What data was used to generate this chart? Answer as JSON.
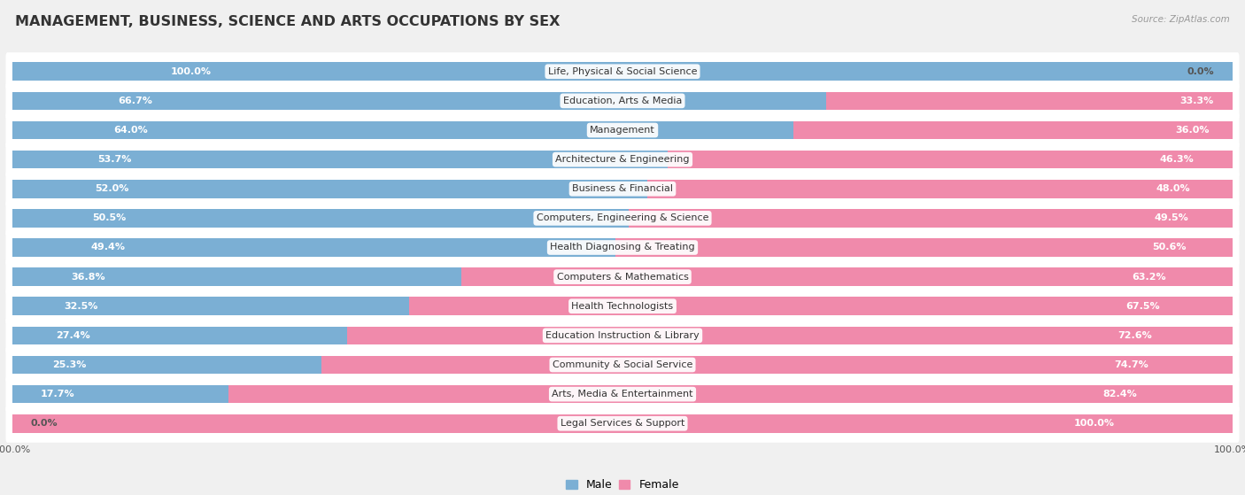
{
  "title": "MANAGEMENT, BUSINESS, SCIENCE AND ARTS OCCUPATIONS BY SEX",
  "source": "Source: ZipAtlas.com",
  "categories": [
    "Life, Physical & Social Science",
    "Education, Arts & Media",
    "Management",
    "Architecture & Engineering",
    "Business & Financial",
    "Computers, Engineering & Science",
    "Health Diagnosing & Treating",
    "Computers & Mathematics",
    "Health Technologists",
    "Education Instruction & Library",
    "Community & Social Service",
    "Arts, Media & Entertainment",
    "Legal Services & Support"
  ],
  "male_pct": [
    100.0,
    66.7,
    64.0,
    53.7,
    52.0,
    50.5,
    49.4,
    36.8,
    32.5,
    27.4,
    25.3,
    17.7,
    0.0
  ],
  "female_pct": [
    0.0,
    33.3,
    36.0,
    46.3,
    48.0,
    49.5,
    50.6,
    63.2,
    67.5,
    72.6,
    74.7,
    82.4,
    100.0
  ],
  "male_color": "#7bafd4",
  "female_color": "#f08aab",
  "bg_color": "#f0f0f0",
  "bar_bg_color": "#ffffff",
  "bar_height": 0.62,
  "title_fontsize": 11.5,
  "label_fontsize": 8,
  "cat_fontsize": 8,
  "inside_label_color": "#ffffff",
  "outside_label_color": "#555555"
}
